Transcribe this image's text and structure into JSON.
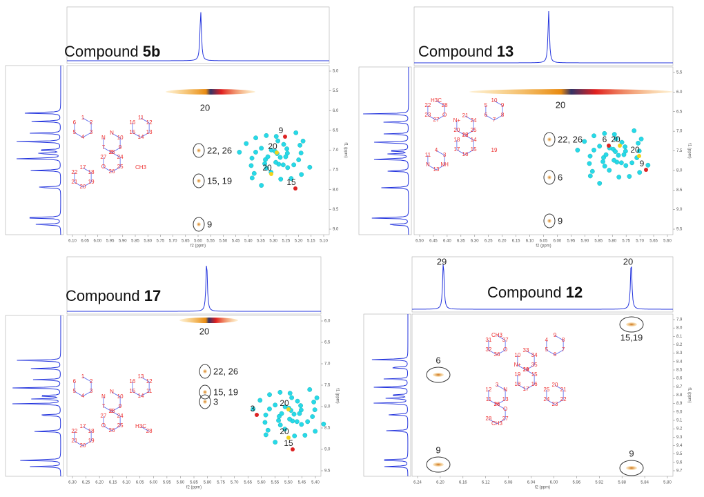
{
  "panels": [
    {
      "title": "Compound ",
      "id": "5b",
      "x_label": "f2 (ppm)",
      "y_label": "f1 (ppm)",
      "x_ticks": [
        "6.10",
        "6.05",
        "6.00",
        "5.95",
        "5.90",
        "5.85",
        "5.80",
        "5.75",
        "5.70",
        "5.65",
        "5.60",
        "5.55",
        "5.50",
        "5.45",
        "5.40",
        "5.35",
        "5.30",
        "5.25",
        "5.20",
        "5.15",
        "5.10"
      ],
      "y_ticks": [
        "5.0",
        "5.5",
        "6.0",
        "6.5",
        "7.0",
        "7.5",
        "8.0",
        "8.5",
        "9.0"
      ],
      "cross_peak": "20",
      "peaks": [
        "22, 26",
        "15, 19",
        "9"
      ],
      "model_labels": [
        "9",
        "20",
        "20",
        "15"
      ],
      "atoms": [
        "1",
        "2",
        "3",
        "4",
        "5",
        "6",
        "N",
        "10",
        "9",
        "8",
        "7",
        "N",
        "11",
        "12",
        "13",
        "14",
        "15",
        "16",
        "17",
        "18",
        "19",
        "20",
        "21",
        "22",
        "23",
        "24",
        "25",
        "26",
        "O",
        "27",
        "CH3"
      ]
    },
    {
      "title": "Compound ",
      "id": "13",
      "x_label": "f2 (ppm)",
      "y_label": "f1 (ppm)",
      "x_ticks": [
        "6.50",
        "6.45",
        "6.40",
        "6.35",
        "6.30",
        "6.25",
        "6.20",
        "6.15",
        "6.10",
        "6.05",
        "6.00",
        "5.95",
        "5.90",
        "5.85",
        "5.80",
        "5.75",
        "5.70",
        "5.65",
        "5.60"
      ],
      "y_ticks": [
        "5.5",
        "6.0",
        "6.5",
        "7.0",
        "7.5",
        "8.0",
        "8.5",
        "9.0",
        "9.5"
      ],
      "cross_peak": "20",
      "peaks": [
        "22, 26",
        "6",
        "9"
      ],
      "model_labels": [
        "6",
        "20",
        "20",
        "9"
      ],
      "atoms": [
        "H3C",
        "28",
        "O",
        "27",
        "23",
        "22",
        "21",
        "24",
        "25",
        "26",
        "20",
        "N+",
        "10",
        "9",
        "8",
        "7",
        "6",
        "5",
        "4",
        "3",
        "NH",
        "13",
        "N",
        "11",
        "12",
        "14",
        "15",
        "16",
        "17",
        "18",
        "19"
      ]
    },
    {
      "title": "Compound ",
      "id": "17",
      "x_label": "f2 (ppm)",
      "y_label": "f1 (ppm)",
      "x_ticks": [
        "6.30",
        "6.25",
        "6.20",
        "6.15",
        "6.10",
        "6.05",
        "6.00",
        "5.95",
        "5.90",
        "5.85",
        "5.80",
        "5.75",
        "5.70",
        "5.65",
        "5.60",
        "5.55",
        "5.50",
        "5.45",
        "5.40"
      ],
      "y_ticks": [
        "6.0",
        "6.5",
        "7.0",
        "7.5",
        "8.0",
        "8.5",
        "9.0",
        "9.5"
      ],
      "cross_peak": "20",
      "peaks": [
        "22, 26",
        "15, 19",
        "3"
      ],
      "model_labels": [
        "3",
        "20",
        "20",
        "15"
      ],
      "atoms": [
        "1",
        "2",
        "3",
        "4",
        "5",
        "6",
        "N",
        "10",
        "9",
        "8",
        "7",
        "N",
        "13",
        "12",
        "11",
        "14",
        "15",
        "16",
        "17",
        "18",
        "19",
        "20",
        "21",
        "22",
        "23",
        "24",
        "25",
        "26",
        "O",
        "27",
        "H3C",
        "28"
      ]
    },
    {
      "title": "Compound ",
      "id": "12",
      "x_label": "f2 (ppm)",
      "y_label": "f1 (ppm)",
      "x_ticks": [
        "6.24",
        "6.20",
        "6.16",
        "6.12",
        "6.08",
        "6.04",
        "6.00",
        "5.96",
        "5.92",
        "5.88",
        "5.84",
        "5.80"
      ],
      "y_ticks": [
        "7.9",
        "8.0",
        "8.1",
        "8.2",
        "8.3",
        "8.4",
        "8.5",
        "8.6",
        "8.7",
        "8.8",
        "8.9",
        "9.0",
        "9.1",
        "9.2",
        "9.3",
        "9.4",
        "9.5",
        "9.6",
        "9.7"
      ],
      "top_labels": [
        "29",
        "20"
      ],
      "peaks": [
        "15,19",
        "6",
        "9",
        "9"
      ],
      "atoms": [
        "CH3",
        "37",
        "O",
        "36",
        "32",
        "31",
        "33",
        "34",
        "35",
        "29",
        "N+",
        "10",
        "9",
        "8",
        "7",
        "6",
        "5",
        "4",
        "3",
        "N",
        "13",
        "N",
        "11",
        "12",
        "14",
        "15",
        "16",
        "17",
        "18",
        "19",
        "20",
        "21",
        "22",
        "23",
        "24",
        "25",
        "26",
        "O",
        "27",
        "CH3",
        "28"
      ]
    }
  ]
}
